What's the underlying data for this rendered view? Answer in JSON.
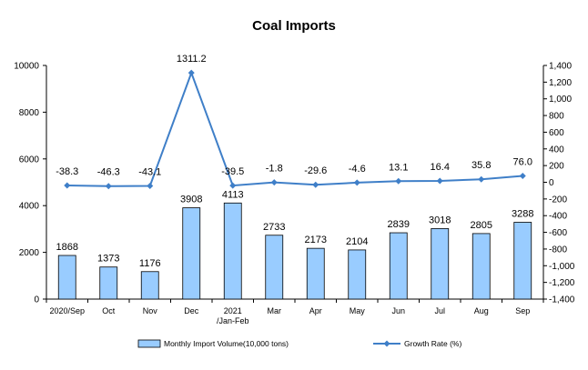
{
  "chart_data": {
    "type": "bar",
    "title": "Coal Imports",
    "categories": [
      "2020/Sep",
      "Oct",
      "Nov",
      "Dec",
      "2021\n/Jan-Feb",
      "Mar",
      "Apr",
      "May",
      "Jun",
      "Jul",
      "Aug",
      "Sep"
    ],
    "series": [
      {
        "name": "Monthly Import Volume(10,000 tons)",
        "type": "bar",
        "axis": "left",
        "color": "#99ccff",
        "values": [
          1868,
          1373,
          1176,
          3908,
          4113,
          2733,
          2173,
          2104,
          2839,
          3018,
          2805,
          3288
        ]
      },
      {
        "name": "Growth Rate (%)",
        "type": "line",
        "axis": "right",
        "color": "#3f7fc8",
        "values": [
          -38.3,
          -46.3,
          -43.1,
          1311.2,
          -39.5,
          -1.8,
          -29.6,
          -4.6,
          13.1,
          16.4,
          35.8,
          76.0
        ]
      }
    ],
    "data_labels_bar": [
      "1868",
      "1373",
      "1176",
      "3908",
      "4113",
      "2733",
      "2173",
      "2104",
      "2839",
      "3018",
      "2805",
      "3288"
    ],
    "data_labels_line": [
      "-38.3",
      "-46.3",
      "-43.1",
      "1311.2",
      "-39.5",
      "-1.8",
      "-29.6",
      "-4.6",
      "13.1",
      "16.4",
      "35.8",
      "76.0"
    ],
    "y_left": {
      "ylim": [
        0,
        10000
      ],
      "ticks": [
        0,
        2000,
        4000,
        6000,
        8000,
        10000
      ]
    },
    "y_right": {
      "ylim": [
        -1400,
        1400
      ],
      "ticks": [
        -1400,
        -1200,
        -1000,
        -800,
        -600,
        -400,
        -200,
        0,
        200,
        400,
        600,
        800,
        1000,
        1200,
        1400
      ],
      "tick_labels": [
        "-1,400",
        "-1,200",
        "-1,000",
        "-800",
        "-600",
        "-400",
        "-200",
        "0",
        "200",
        "400",
        "600",
        "800",
        "1,000",
        "1,200",
        "1,400"
      ]
    },
    "grid": false,
    "legend_position": "bottom"
  }
}
